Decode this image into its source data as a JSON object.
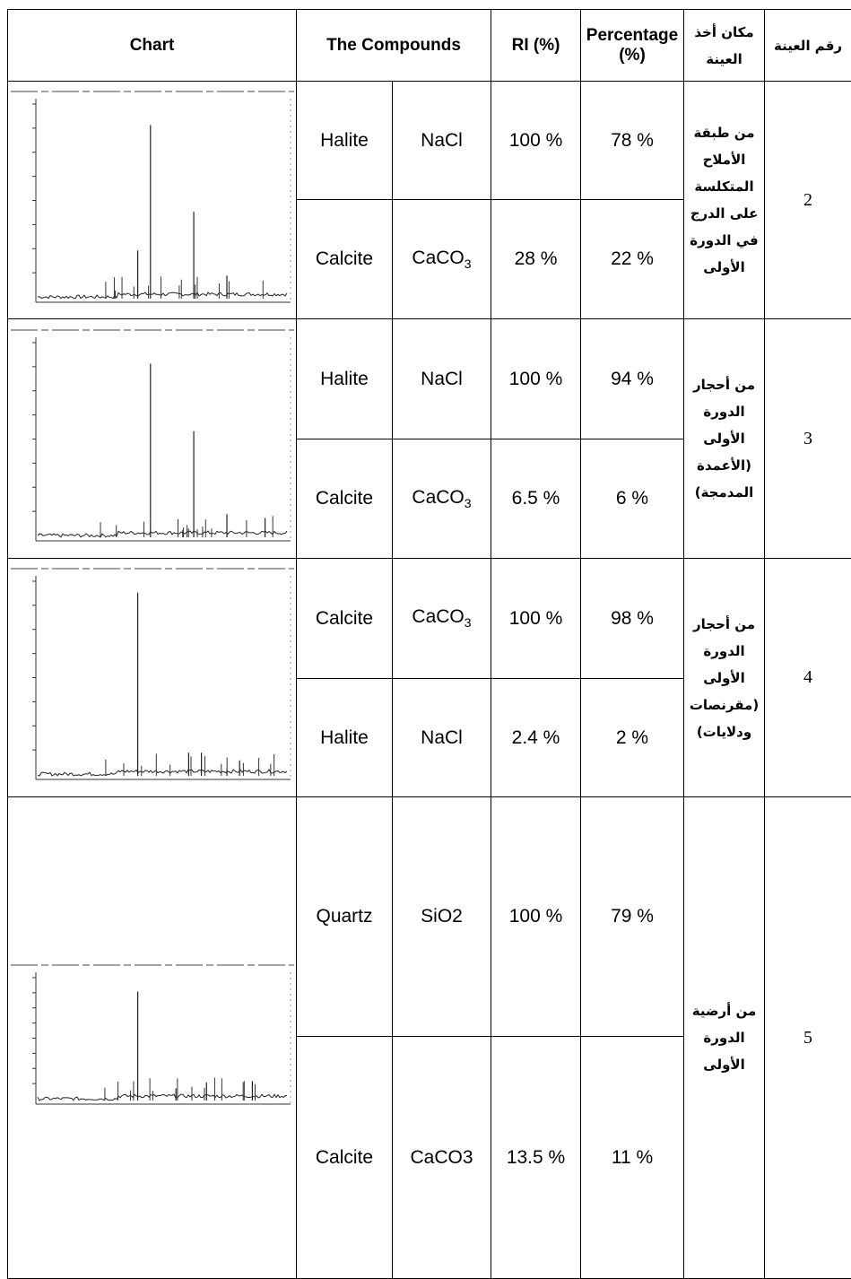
{
  "header": {
    "chart": "Chart",
    "compounds": "The Compounds",
    "ri": "RI (%)",
    "percentage": "Percentage (%)",
    "location": "مكان أخذ العينة",
    "number": "رقم العينة"
  },
  "rows": [
    {
      "location": "من طبقة الأملاح المتكلسة على الدرج في الدورة الأولى",
      "number": 2,
      "compounds": [
        {
          "name": "Halite",
          "formula": "NaCl",
          "ri": "100 %",
          "percentage": "78 %"
        },
        {
          "name": "Calcite",
          "formula": "CaCO",
          "formula_sub": "3",
          "ri": "28 %",
          "percentage": "22 %"
        }
      ]
    },
    {
      "location": "من أحجار الدورة الأولى (الأعمدة المدمجة)",
      "number": 3,
      "compounds": [
        {
          "name": "Halite",
          "formula": "NaCl",
          "ri": "100 %",
          "percentage": "94 %"
        },
        {
          "name": "Calcite",
          "formula": "CaCO",
          "formula_sub": "3",
          "ri": "6.5 %",
          "percentage": "6 %"
        }
      ]
    },
    {
      "location": "من أحجار الدورة الأولى (مقرنصات ودلايات)",
      "number": 4,
      "compounds": [
        {
          "name": "Calcite",
          "formula": "CaCO",
          "formula_sub": "3",
          "ri": "100 %",
          "percentage": "98 %"
        },
        {
          "name": "Halite",
          "formula": "NaCl",
          "ri": "2.4 %",
          "percentage": "2 %"
        }
      ]
    },
    {
      "location": "من أرضية الدورة الأولى",
      "number": 5,
      "compounds": [
        {
          "name": "Quartz",
          "formula": "SiO2",
          "ri": "100 %",
          "percentage": "79 %"
        },
        {
          "name": "Calcite",
          "formula": "CaCO3",
          "ri": "13.5 %",
          "percentage": "11 %"
        }
      ]
    }
  ]
}
